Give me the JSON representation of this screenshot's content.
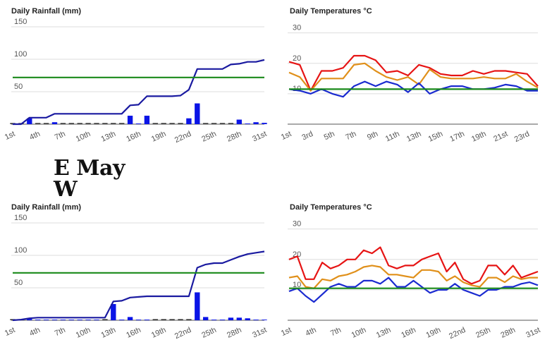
{
  "station_label": {
    "line1": "E May",
    "line2": "W"
  },
  "colors": {
    "bar": "#0a14e6",
    "cumulative": "#1a1aa0",
    "average": "#1a8a1a",
    "max": "#e61414",
    "mean": "#e0901a",
    "min": "#1a2ad0"
  },
  "chart_data": [
    {
      "type": "bar",
      "title": "Daily Rainfall (mm)",
      "ylim": [
        0,
        150
      ],
      "yticks": [
        50,
        100,
        150
      ],
      "grid": true,
      "categories": [
        "1st",
        "2nd",
        "3rd",
        "4th",
        "5th",
        "6th",
        "7th",
        "8th",
        "9th",
        "10th",
        "11th",
        "12th",
        "13th",
        "14th",
        "15th",
        "16th",
        "17th",
        "18th",
        "19th",
        "20th",
        "21st",
        "22nd",
        "23rd",
        "24th",
        "25th",
        "26th",
        "27th",
        "28th",
        "29th",
        "30th",
        "31st"
      ],
      "xtick_labels": [
        "1st",
        "4th",
        "7th",
        "10th",
        "13th",
        "16th",
        "19th",
        "22nd",
        "25th",
        "28th",
        "31st"
      ],
      "series": [
        {
          "kind": "bar",
          "values": [
            0,
            0,
            9,
            0,
            0,
            3,
            0,
            0,
            0,
            0,
            0,
            0,
            0,
            0,
            13,
            1,
            13,
            0,
            0,
            0,
            0,
            9,
            32,
            0,
            0,
            0,
            0,
            7,
            1,
            3,
            2
          ]
        },
        {
          "kind": "line",
          "values": [
            0,
            0,
            10,
            10,
            10,
            16,
            16,
            16,
            16,
            16,
            16,
            16,
            16,
            16,
            29,
            30,
            43,
            43,
            43,
            43,
            44,
            53,
            85,
            85,
            85,
            85,
            92,
            93,
            96,
            96,
            99
          ]
        },
        {
          "kind": "line",
          "values": [
            72,
            72,
            72,
            72,
            72,
            72,
            72,
            72,
            72,
            72,
            72,
            72,
            72,
            72,
            72,
            72,
            72,
            72,
            72,
            72,
            72,
            72,
            72,
            72,
            72,
            72,
            72,
            72,
            72,
            72,
            72
          ]
        }
      ]
    },
    {
      "type": "line",
      "title": "Daily Temperatures °C",
      "ylim": [
        0,
        32
      ],
      "yticks": [
        10,
        20,
        30
      ],
      "grid": true,
      "categories": [
        "1st",
        "2nd",
        "3rd",
        "4th",
        "5th",
        "6th",
        "7th",
        "8th",
        "9th",
        "10th",
        "11th",
        "12th",
        "13th",
        "14th",
        "15th",
        "16th",
        "17th",
        "18th",
        "19th",
        "20th",
        "21st",
        "22nd",
        "23rd",
        "24th"
      ],
      "xtick_labels": [
        "1st",
        "3rd",
        "5th",
        "7th",
        "9th",
        "11th",
        "13th",
        "15th",
        "17th",
        "19th",
        "21st",
        "23rd"
      ],
      "series": [
        {
          "kind": "line",
          "values": [
            20.5,
            19.5,
            11.0,
            17.5,
            17.5,
            18.5,
            22.5,
            22.5,
            21.0,
            17.0,
            17.5,
            16.0,
            19.5,
            18.5,
            16.5,
            16.0,
            16.0,
            17.5,
            16.5,
            17.5,
            17.5,
            17.0,
            16.5,
            12.5
          ]
        },
        {
          "kind": "line",
          "values": [
            17.0,
            15.5,
            11.0,
            15.0,
            15.0,
            15.0,
            19.5,
            20.0,
            17.5,
            15.5,
            14.5,
            15.5,
            13.0,
            18.0,
            15.5,
            15.0,
            15.0,
            15.0,
            15.5,
            15.0,
            15.0,
            16.5,
            14.0,
            12.0
          ]
        },
        {
          "kind": "line",
          "values": [
            11.5,
            11.0,
            10.0,
            11.5,
            10.0,
            9.0,
            12.5,
            14.0,
            12.5,
            14.0,
            13.0,
            10.5,
            13.5,
            10.0,
            11.5,
            12.5,
            12.5,
            11.5,
            11.5,
            12.0,
            13.0,
            12.5,
            11.0,
            11.0
          ]
        },
        {
          "kind": "line",
          "values": [
            11.5,
            11.5,
            11.5,
            11.5,
            11.5,
            11.5,
            11.5,
            11.5,
            11.5,
            11.5,
            11.5,
            11.5,
            11.5,
            11.5,
            11.5,
            11.5,
            11.5,
            11.5,
            11.5,
            11.5,
            11.5,
            11.5,
            11.5,
            11.5
          ]
        }
      ]
    },
    {
      "type": "bar",
      "title": "Daily Rainfall (mm)",
      "ylim": [
        0,
        150
      ],
      "yticks": [
        50,
        100,
        150
      ],
      "grid": true,
      "categories": [
        "1st",
        "2nd",
        "3rd",
        "4th",
        "5th",
        "6th",
        "7th",
        "8th",
        "9th",
        "10th",
        "11th",
        "12th",
        "13th",
        "14th",
        "15th",
        "16th",
        "17th",
        "18th",
        "19th",
        "20th",
        "21st",
        "22nd",
        "23rd",
        "24th",
        "25th",
        "26th",
        "27th",
        "28th",
        "29th",
        "30th",
        "31st"
      ],
      "xtick_labels": [
        "1st",
        "4th",
        "7th",
        "10th",
        "13th",
        "16th",
        "19th",
        "22nd",
        "25th",
        "28th",
        "31st"
      ],
      "series": [
        {
          "kind": "bar",
          "values": [
            0,
            1,
            2,
            1,
            1,
            1,
            1,
            1,
            1,
            1,
            1,
            0,
            25,
            1,
            5,
            1,
            1,
            0,
            0,
            0,
            0,
            0,
            43,
            5,
            1,
            1,
            4,
            4,
            3,
            1,
            1
          ]
        },
        {
          "kind": "line",
          "values": [
            0,
            1,
            3,
            4,
            4,
            4,
            4,
            4,
            4,
            4,
            4,
            4,
            29,
            30,
            35,
            36,
            37,
            37,
            37,
            37,
            37,
            37,
            81,
            86,
            88,
            88,
            93,
            98,
            102,
            104,
            106
          ]
        },
        {
          "kind": "line",
          "values": [
            73,
            73,
            73,
            73,
            73,
            73,
            73,
            73,
            73,
            73,
            73,
            73,
            73,
            73,
            73,
            73,
            73,
            73,
            73,
            73,
            73,
            73,
            73,
            73,
            73,
            73,
            73,
            73,
            73,
            73,
            73
          ]
        }
      ]
    },
    {
      "type": "line",
      "title": "Daily Temperatures °C",
      "ylim": [
        0,
        32
      ],
      "yticks": [
        10,
        20,
        30
      ],
      "grid": true,
      "categories": [
        "1st",
        "2nd",
        "3rd",
        "4th",
        "5th",
        "6th",
        "7th",
        "8th",
        "9th",
        "10th",
        "11th",
        "12th",
        "13th",
        "14th",
        "15th",
        "16th",
        "17th",
        "18th",
        "19th",
        "20th",
        "21st",
        "22nd",
        "23rd",
        "24th",
        "25th",
        "26th",
        "27th",
        "28th",
        "29th",
        "30th",
        "31st"
      ],
      "xtick_labels": [
        "1st",
        "4th",
        "7th",
        "10th",
        "13th",
        "16th",
        "19th",
        "22nd",
        "25th",
        "28th",
        "31st"
      ],
      "series": [
        {
          "kind": "line",
          "values": [
            20.0,
            21.0,
            13.5,
            13.5,
            19.0,
            17.0,
            18.0,
            20.0,
            20.0,
            23.0,
            22.0,
            24.0,
            18.0,
            17.0,
            18.0,
            18.0,
            20.0,
            21.0,
            22.0,
            16.0,
            19.0,
            13.5,
            12.0,
            13.0,
            18.0,
            18.0,
            15.0,
            18.0,
            14.0,
            15.0,
            16.0
          ]
        },
        {
          "kind": "line",
          "values": [
            14.0,
            14.5,
            11.0,
            10.5,
            13.5,
            13.0,
            14.5,
            15.0,
            16.0,
            17.5,
            18.0,
            17.5,
            15.0,
            15.0,
            14.5,
            14.0,
            16.5,
            16.5,
            16.0,
            13.0,
            14.5,
            12.5,
            11.5,
            11.0,
            14.0,
            14.0,
            12.5,
            14.5,
            13.5,
            14.0,
            14.0
          ]
        },
        {
          "kind": "line",
          "values": [
            9.5,
            10.5,
            8.0,
            6.0,
            8.5,
            11.0,
            12.0,
            11.0,
            11.0,
            13.0,
            13.0,
            12.0,
            14.0,
            11.0,
            11.0,
            13.0,
            11.0,
            9.0,
            10.0,
            10.0,
            12.0,
            10.0,
            9.0,
            8.0,
            10.0,
            10.0,
            11.0,
            11.0,
            12.0,
            12.5,
            11.5
          ]
        },
        {
          "kind": "line",
          "values": [
            10.5,
            10.5,
            10.5,
            10.5,
            10.5,
            10.5,
            10.5,
            10.5,
            10.5,
            10.5,
            10.5,
            10.5,
            10.5,
            10.5,
            10.5,
            10.5,
            10.5,
            10.5,
            10.5,
            10.5,
            10.5,
            10.5,
            10.5,
            10.5,
            10.5,
            10.5,
            10.5,
            10.5,
            10.5,
            10.5,
            10.5
          ]
        }
      ]
    }
  ]
}
